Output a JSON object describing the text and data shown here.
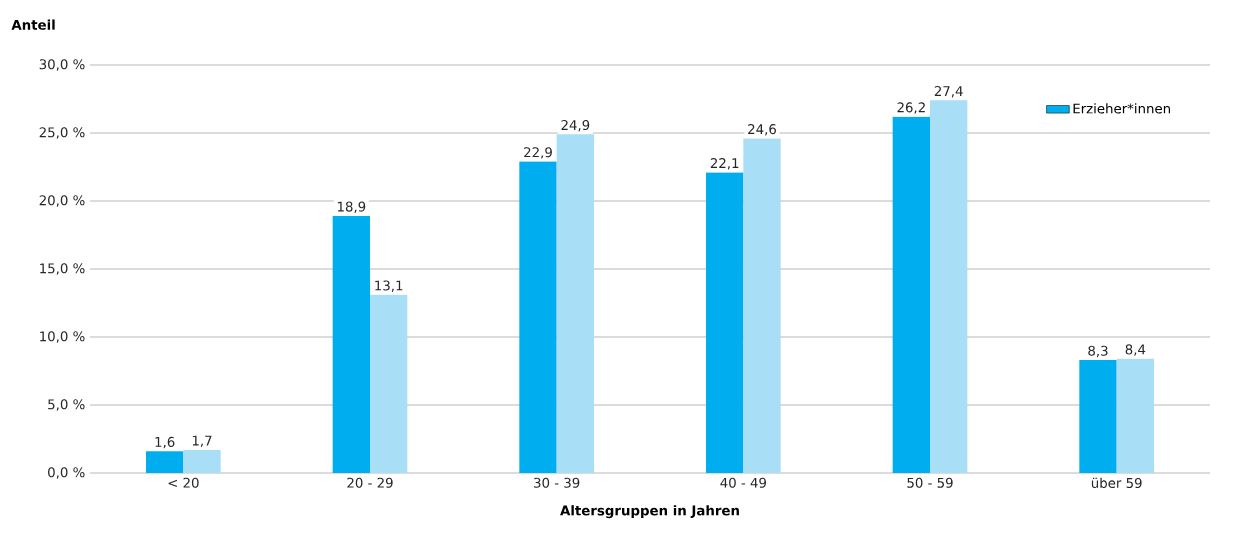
{
  "chart_data": {
    "type": "bar",
    "ylabel": "Anteil",
    "xlabel": "Altersgruppen in Jahren",
    "categories": [
      "< 20",
      "20 - 29",
      "30 - 39",
      "40 - 49",
      "50 - 59",
      "über 59"
    ],
    "series": [
      {
        "name": "Erzieher*innen",
        "color": "#00aeef",
        "values": [
          1.6,
          18.9,
          22.9,
          22.1,
          26.2,
          8.3
        ],
        "value_labels": [
          "1,6",
          "18,9",
          "22,9",
          "22,1",
          "26,2",
          "8,3"
        ]
      },
      {
        "color": "#a8def6",
        "values": [
          1.7,
          13.1,
          24.9,
          24.6,
          27.4,
          8.4
        ],
        "value_labels": [
          "1,7",
          "13,1",
          "24,9",
          "24,6",
          "27,4",
          "8,4"
        ]
      }
    ],
    "ylim": [
      0,
      30
    ],
    "yticks": [
      {
        "value": 0,
        "label": "0,0 %"
      },
      {
        "value": 5,
        "label": "5,0 %"
      },
      {
        "value": 10,
        "label": "10,0 %"
      },
      {
        "value": 15,
        "label": "15,0 %"
      },
      {
        "value": 20,
        "label": "20,0 %"
      },
      {
        "value": 25,
        "label": "25,0 %"
      },
      {
        "value": 30,
        "label": "30,0 %"
      }
    ],
    "grid": "y",
    "legend": "top right"
  }
}
